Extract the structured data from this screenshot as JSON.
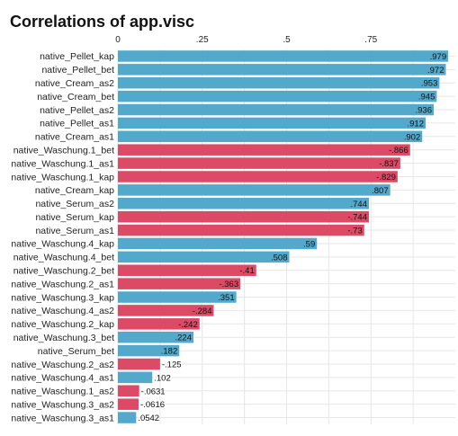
{
  "chart_data": {
    "type": "bar",
    "orientation": "horizontal",
    "title": "Correlations of app.visc",
    "xlabel": "",
    "ylabel": "",
    "xlim": [
      0,
      1
    ],
    "xticks": [
      0,
      0.25,
      0.5,
      0.75
    ],
    "xtick_labels": [
      "0",
      ".25",
      ".5",
      ".75"
    ],
    "xaxis_position": "top",
    "grid": true,
    "bar_length": "absolute value",
    "colors": {
      "positive": "#52a9cc",
      "negative": "#dd4a65"
    },
    "categories": [
      "native_Pellet_kap",
      "native_Pellet_bet",
      "native_Cream_as2",
      "native_Cream_bet",
      "native_Pellet_as2",
      "native_Pellet_as1",
      "native_Cream_as1",
      "native_Waschung.1_bet",
      "native_Waschung.1_as1",
      "native_Waschung.1_kap",
      "native_Cream_kap",
      "native_Serum_as2",
      "native_Serum_kap",
      "native_Serum_as1",
      "native_Waschung.4_kap",
      "native_Waschung.4_bet",
      "native_Waschung.2_bet",
      "native_Waschung.2_as1",
      "native_Waschung.3_kap",
      "native_Waschung.4_as2",
      "native_Waschung.2_kap",
      "native_Waschung.3_bet",
      "native_Serum_bet",
      "native_Waschung.2_as2",
      "native_Waschung.4_as1",
      "native_Waschung.1_as2",
      "native_Waschung.3_as2",
      "native_Waschung.3_as1"
    ],
    "values": [
      0.979,
      0.972,
      0.953,
      0.945,
      0.936,
      0.912,
      0.902,
      -0.866,
      -0.837,
      -0.829,
      0.807,
      0.744,
      -0.744,
      -0.73,
      0.59,
      0.508,
      -0.41,
      -0.363,
      0.351,
      -0.284,
      -0.242,
      0.224,
      0.182,
      -0.125,
      0.102,
      -0.0631,
      -0.0616,
      0.0542
    ],
    "data_labels": [
      ".979",
      ".972",
      ".953",
      ".945",
      ".936",
      ".912",
      ".902",
      "-.866",
      "-.837",
      "-.829",
      ".807",
      ".744",
      "-.744",
      "-.73",
      ".59",
      ".508",
      "-.41",
      "-.363",
      ".351",
      "-.284",
      "-.242",
      ".224",
      ".182",
      "-.125",
      ".102",
      "-.0631",
      "-.0616",
      ".0542"
    ]
  }
}
